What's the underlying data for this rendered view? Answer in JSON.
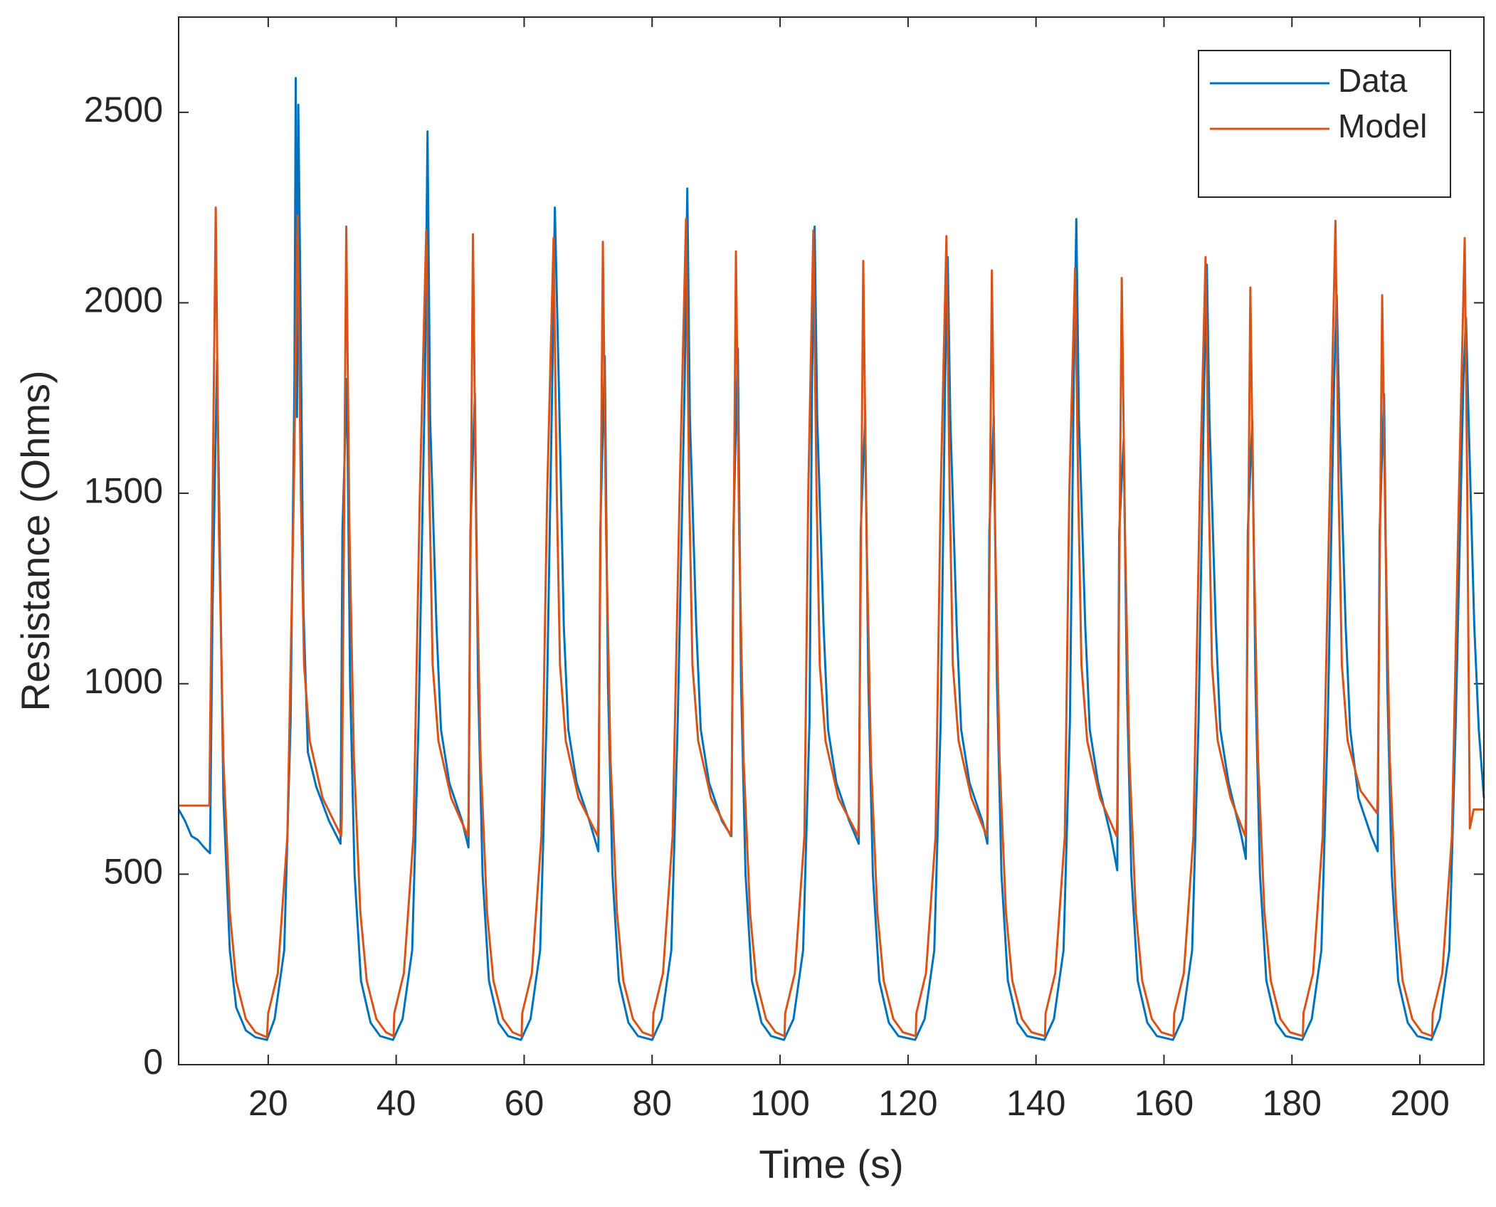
{
  "chart_data": {
    "type": "line",
    "xlabel": "Time (s)",
    "ylabel": "Resistance (Ohms)",
    "xlim": [
      6,
      210
    ],
    "ylim": [
      0,
      2750
    ],
    "xticks": [
      20,
      40,
      60,
      80,
      100,
      120,
      140,
      160,
      180,
      200
    ],
    "yticks": [
      0,
      500,
      1000,
      1500,
      2000,
      2500
    ],
    "grid": false,
    "legend": "northeast",
    "series": [
      {
        "name": "Data",
        "color": "#0072BD",
        "x": [
          6,
          7,
          8,
          9,
          10,
          10.9,
          11.3,
          12.0,
          12.4,
          13,
          14,
          15,
          16.5,
          18,
          19.8,
          21,
          22.5,
          23.5,
          24.1,
          24.3,
          24.5,
          24.7,
          25.0,
          25.5,
          26.2,
          27.5,
          29.5,
          31.3,
          31.6,
          32.3,
          32.8,
          33.5,
          34.5,
          36,
          37.5,
          39.5,
          41.0,
          42.5,
          43.5,
          44.5,
          44.9,
          45.3,
          46.3,
          47.0,
          48.3,
          50.3,
          51.3,
          51.6,
          52.3,
          52.8,
          53.5,
          54.5,
          56.0,
          57.5,
          59.5,
          61.0,
          62.5,
          63.5,
          64.4,
          64.8,
          65.4,
          66.2,
          66.9,
          68.2,
          70.2,
          71.6,
          71.9,
          72.6,
          73.1,
          73.8,
          74.8,
          76.3,
          77.8,
          80.0,
          81.5,
          83.0,
          84.0,
          85.1,
          85.5,
          85.9,
          86.9,
          87.6,
          88.9,
          90.9,
          92.4,
          92.7,
          93.4,
          93.9,
          94.6,
          95.6,
          97.1,
          98.6,
          100.6,
          102.1,
          103.6,
          104.6,
          105.0,
          105.4,
          105.8,
          106.8,
          107.5,
          108.8,
          110.8,
          112.3,
          112.6,
          113.3,
          113.8,
          114.5,
          115.5,
          117.0,
          118.5,
          121.1,
          122.6,
          124.1,
          125.1,
          125.8,
          126.2,
          126.6,
          127.6,
          128.3,
          129.6,
          131.6,
          132.4,
          132.7,
          133.4,
          133.9,
          134.6,
          135.6,
          137.1,
          138.6,
          141.3,
          142.8,
          144.3,
          145.3,
          145.9,
          146.3,
          146.7,
          147.7,
          148.4,
          149.7,
          151.7,
          152.7,
          153.0,
          153.7,
          154.2,
          154.9,
          155.9,
          157.4,
          158.9,
          161.4,
          162.9,
          164.4,
          165.4,
          166.3,
          166.7,
          167.1,
          168.1,
          168.8,
          170.1,
          172.1,
          172.8,
          173.1,
          173.8,
          174.3,
          175.0,
          176.0,
          177.5,
          179.0,
          181.6,
          183.1,
          184.6,
          185.6,
          186.6,
          187.0,
          187.4,
          188.4,
          189.1,
          190.4,
          192.4,
          193.4,
          193.7,
          194.4,
          194.9,
          195.6,
          196.6,
          198.1,
          199.6,
          201.8,
          203.1,
          204.6,
          205.6,
          206.8,
          207.2,
          207.6,
          208.5,
          209.2,
          210
        ],
        "values": [
          670,
          640,
          600,
          590,
          570,
          555,
          1200,
          1850,
          1400,
          700,
          300,
          150,
          90,
          72,
          65,
          120,
          300,
          900,
          1800,
          2590,
          1700,
          2520,
          2070,
          1200,
          820,
          730,
          640,
          580,
          1400,
          1800,
          1000,
          500,
          220,
          110,
          75,
          65,
          120,
          300,
          900,
          1800,
          2450,
          1700,
          1150,
          880,
          740,
          640,
          570,
          1400,
          1760,
          1000,
          500,
          220,
          110,
          75,
          65,
          120,
          300,
          900,
          1800,
          2250,
          1800,
          1150,
          880,
          740,
          640,
          560,
          1400,
          1860,
          1000,
          500,
          220,
          110,
          75,
          65,
          120,
          300,
          900,
          1800,
          2300,
          1700,
          1150,
          880,
          740,
          640,
          600,
          1400,
          1880,
          1000,
          500,
          220,
          110,
          75,
          65,
          120,
          300,
          900,
          1800,
          2200,
          1700,
          1150,
          880,
          740,
          640,
          580,
          1400,
          1700,
          1000,
          500,
          220,
          110,
          75,
          65,
          120,
          300,
          900,
          1800,
          2120,
          1700,
          1150,
          880,
          740,
          640,
          580,
          1400,
          1700,
          1000,
          500,
          220,
          110,
          75,
          65,
          120,
          300,
          900,
          1800,
          2220,
          1700,
          1150,
          880,
          740,
          600,
          510,
          1400,
          1640,
          1000,
          500,
          220,
          110,
          75,
          65,
          120,
          300,
          900,
          1800,
          2100,
          1700,
          1150,
          880,
          740,
          600,
          540,
          1400,
          1690,
          1000,
          500,
          220,
          110,
          75,
          65,
          120,
          300,
          900,
          1800,
          2020,
          1700,
          1150,
          880,
          700,
          600,
          560,
          1400,
          1760,
          1000,
          500,
          220,
          110,
          75,
          65,
          120,
          300,
          900,
          1800,
          1960,
          1700,
          1150,
          880,
          700
        ]
      },
      {
        "name": "Model",
        "color": "#D95319",
        "x": [
          6,
          10.8,
          11.8,
          12.3,
          13,
          14,
          15,
          16.5,
          18,
          19.8,
          20,
          21.5,
          23,
          24,
          24.6,
          25.1,
          25.6,
          26.5,
          28.5,
          31.4,
          31.5,
          32.2,
          32.7,
          33.4,
          34.4,
          35.4,
          36.9,
          38.4,
          39.6,
          39.7,
          41.2,
          42.7,
          43.7,
          44.7,
          45.2,
          45.7,
          46.6,
          48.6,
          51.2,
          51.3,
          52.0,
          52.5,
          53.2,
          54.2,
          55.2,
          56.7,
          58.2,
          59.6,
          59.7,
          61.2,
          62.7,
          63.6,
          64.6,
          65.1,
          65.6,
          66.5,
          68.5,
          71.5,
          71.6,
          72.3,
          72.8,
          73.5,
          74.5,
          75.5,
          77.0,
          78.5,
          80.1,
          80.2,
          81.7,
          83.2,
          84.3,
          85.3,
          85.8,
          86.3,
          87.2,
          89.2,
          92.3,
          92.4,
          93.1,
          93.6,
          94.3,
          95.3,
          96.3,
          97.8,
          99.3,
          100.7,
          100.8,
          102.3,
          103.8,
          104.4,
          105.2,
          105.7,
          106.2,
          107.1,
          109.1,
          112.2,
          112.3,
          113.0,
          113.5,
          114.2,
          115.2,
          116.2,
          117.7,
          119.2,
          121.2,
          121.3,
          122.8,
          124.3,
          125.1,
          126.0,
          126.5,
          127.0,
          127.9,
          129.9,
          132.3,
          132.4,
          133.1,
          133.6,
          134.3,
          135.3,
          136.3,
          137.8,
          139.3,
          141.4,
          141.5,
          143.0,
          144.5,
          145.2,
          146.1,
          146.6,
          147.1,
          148.0,
          150.0,
          152.6,
          152.7,
          153.4,
          153.9,
          154.6,
          155.6,
          156.6,
          158.1,
          159.6,
          161.5,
          161.6,
          163.1,
          164.6,
          165.6,
          166.5,
          167.0,
          167.5,
          168.4,
          170.4,
          172.7,
          172.8,
          173.5,
          174.0,
          174.7,
          175.7,
          176.7,
          178.2,
          179.7,
          181.7,
          181.8,
          183.3,
          184.8,
          185.9,
          186.8,
          187.3,
          187.8,
          188.7,
          190.7,
          193.3,
          193.4,
          194.1,
          194.6,
          195.3,
          196.3,
          197.3,
          198.8,
          200.3,
          201.9,
          202.0,
          203.5,
          205.0,
          206.1,
          207.0,
          207.4,
          207.8,
          208.4,
          210
        ],
        "values": [
          680,
          680,
          2250,
          1400,
          800,
          400,
          220,
          120,
          85,
          72,
          135,
          240,
          600,
          1500,
          2230,
          1500,
          1050,
          850,
          700,
          600,
          650,
          2200,
          1400,
          800,
          400,
          220,
          120,
          85,
          75,
          135,
          240,
          600,
          1500,
          2190,
          1500,
          1050,
          850,
          700,
          600,
          650,
          2180,
          1400,
          800,
          400,
          220,
          120,
          85,
          75,
          135,
          240,
          600,
          1500,
          2170,
          1500,
          1050,
          850,
          700,
          600,
          650,
          2160,
          1400,
          800,
          400,
          220,
          120,
          85,
          75,
          135,
          240,
          600,
          1500,
          2220,
          1500,
          1050,
          850,
          700,
          600,
          650,
          2135,
          1400,
          800,
          400,
          220,
          120,
          85,
          75,
          135,
          240,
          600,
          1500,
          2190,
          1500,
          1050,
          850,
          700,
          600,
          650,
          2110,
          1400,
          800,
          400,
          220,
          120,
          85,
          75,
          135,
          240,
          600,
          1500,
          2175,
          1500,
          1050,
          850,
          700,
          600,
          650,
          2085,
          1400,
          800,
          400,
          220,
          120,
          85,
          75,
          135,
          240,
          600,
          1500,
          2090,
          1500,
          1050,
          850,
          700,
          600,
          650,
          2065,
          1400,
          800,
          400,
          220,
          120,
          85,
          75,
          135,
          240,
          600,
          1500,
          2120,
          1500,
          1050,
          850,
          700,
          600,
          650,
          2040,
          1400,
          800,
          400,
          220,
          120,
          85,
          75,
          135,
          240,
          600,
          1500,
          2215,
          1500,
          1050,
          850,
          720,
          660,
          700,
          2020,
          1400,
          800,
          400,
          220,
          120,
          85,
          75,
          135,
          240,
          600,
          1500,
          2170,
          1500,
          620,
          670,
          670
        ]
      }
    ]
  }
}
